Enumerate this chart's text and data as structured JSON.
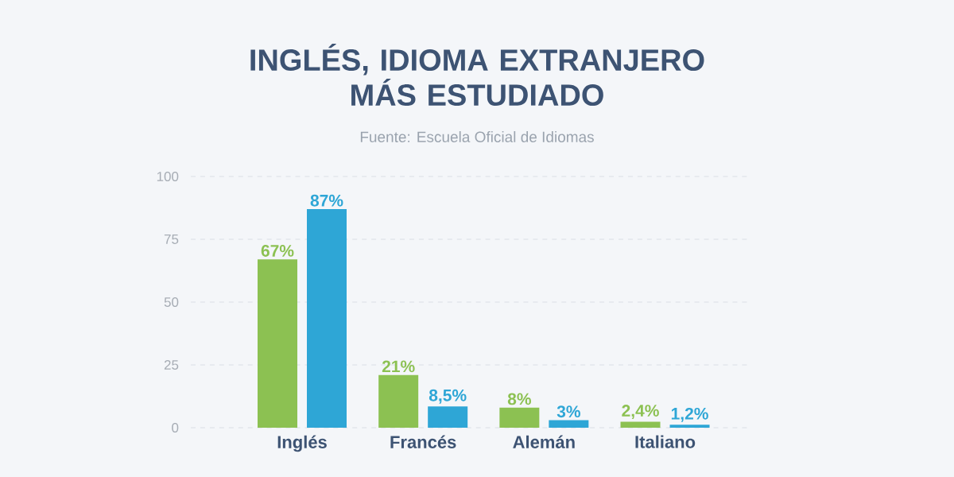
{
  "chart_data": {
    "type": "bar",
    "title": "INGLÉS, IDIOMA EXTRANJERO MÁS ESTUDIADO",
    "subtitle": "Fuente: Escuela Oficial de Idiomas",
    "categories": [
      "Inglés",
      "Francés",
      "Alemán",
      "Italiano"
    ],
    "series": [
      {
        "color": "#8cc152",
        "values": [
          67,
          21,
          8,
          2.4
        ],
        "value_labels": [
          "67%",
          "21%",
          "8%",
          "2,4%"
        ]
      },
      {
        "color": "#2ea6d6",
        "values": [
          87,
          8.5,
          3,
          1.2
        ],
        "value_labels": [
          "87%",
          "8,5%",
          "3%",
          "1,2%"
        ]
      }
    ],
    "ylim": [
      0,
      100
    ],
    "yticks": [
      0,
      25,
      50,
      75,
      100
    ],
    "grid": "y"
  }
}
